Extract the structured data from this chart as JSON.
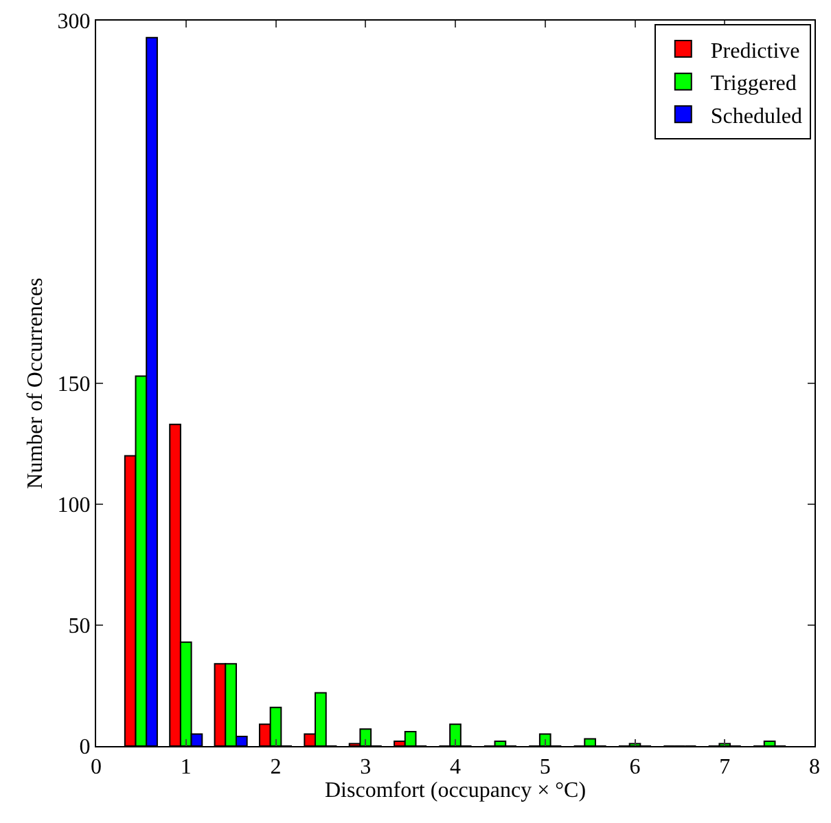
{
  "chart_data": {
    "type": "bar",
    "x": [
      0.5,
      1,
      1.5,
      2,
      2.5,
      3,
      3.5,
      4,
      4.5,
      5,
      5.5,
      6,
      6.5,
      7,
      7.5
    ],
    "xlim": [
      0,
      8
    ],
    "xticks": [
      0,
      1,
      2,
      3,
      4,
      5,
      6,
      7,
      8
    ],
    "ylim": [
      0,
      300
    ],
    "yticks": [
      0,
      50,
      100,
      150,
      300
    ],
    "xlabel": "Discomfort (occupancy × °C)",
    "ylabel": "Number of Occurrences",
    "legend": "top right",
    "series": [
      {
        "name": "Predictive",
        "color": "#ff0000",
        "values": [
          120,
          133,
          34,
          9,
          5,
          1,
          2,
          0,
          0,
          0,
          0,
          0,
          0,
          0,
          0
        ]
      },
      {
        "name": "Triggered",
        "color": "#00ff00",
        "values": [
          153,
          43,
          34,
          16,
          22,
          7,
          6,
          9,
          2,
          5,
          3,
          1,
          0,
          1,
          2
        ]
      },
      {
        "name": "Scheduled",
        "color": "#0000ff",
        "values": [
          293,
          5,
          4,
          0,
          0,
          0,
          0,
          0,
          0,
          0,
          0,
          0,
          0,
          0,
          0
        ]
      }
    ]
  }
}
